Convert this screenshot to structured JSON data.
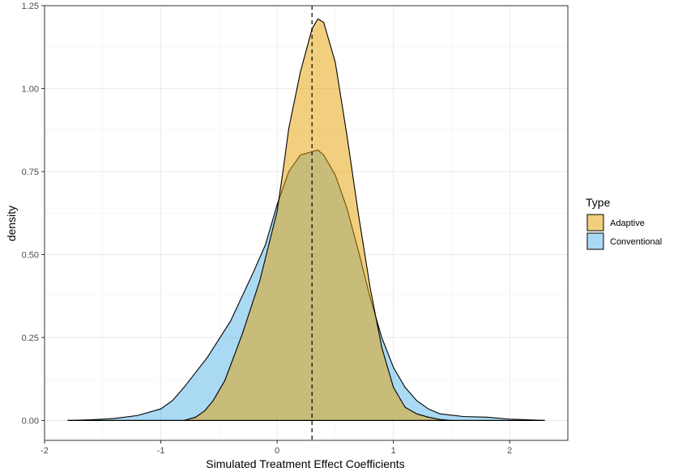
{
  "chart_data": {
    "type": "area",
    "xlabel": "Simulated Treatment Effect Coefficients",
    "ylabel": "density",
    "xlim": [
      -2,
      2.5
    ],
    "ylim": [
      -0.06,
      1.25
    ],
    "x_ticks": [
      -2,
      -1,
      0,
      1,
      2
    ],
    "x_tick_labels": [
      "-2",
      "-1",
      "0",
      "1",
      "2"
    ],
    "y_ticks": [
      0,
      0.25,
      0.5,
      0.75,
      1.0,
      1.25
    ],
    "y_tick_labels": [
      "0.00",
      "0.25",
      "0.50",
      "0.75",
      "1.00",
      "1.25"
    ],
    "grid": true,
    "legend_title": "Type",
    "legend_position": "right",
    "vline": {
      "x": 0.3,
      "style": "dashed"
    },
    "series": [
      {
        "name": "Adaptive",
        "fill": "#E69F00",
        "x": [
          -0.8,
          -0.7,
          -0.62,
          -0.55,
          -0.45,
          -0.3,
          -0.15,
          0.0,
          0.05,
          0.1,
          0.2,
          0.3,
          0.35,
          0.4,
          0.5,
          0.6,
          0.7,
          0.8,
          0.9,
          1.0,
          1.1,
          1.2,
          1.3,
          1.4,
          1.5
        ],
        "y": [
          0.0,
          0.01,
          0.03,
          0.06,
          0.12,
          0.26,
          0.42,
          0.63,
          0.75,
          0.88,
          1.05,
          1.18,
          1.21,
          1.2,
          1.08,
          0.86,
          0.62,
          0.4,
          0.22,
          0.1,
          0.04,
          0.02,
          0.01,
          0.003,
          0.0
        ]
      },
      {
        "name": "Conventional",
        "fill": "#56B4E9",
        "x": [
          -1.8,
          -1.6,
          -1.4,
          -1.2,
          -1.0,
          -0.9,
          -0.8,
          -0.6,
          -0.4,
          -0.2,
          -0.1,
          0.0,
          0.1,
          0.2,
          0.3,
          0.35,
          0.4,
          0.5,
          0.6,
          0.7,
          0.8,
          0.9,
          1.0,
          1.1,
          1.2,
          1.3,
          1.4,
          1.6,
          1.8,
          2.0,
          2.3
        ],
        "y": [
          0.0,
          0.002,
          0.006,
          0.015,
          0.035,
          0.06,
          0.1,
          0.19,
          0.3,
          0.45,
          0.53,
          0.65,
          0.75,
          0.8,
          0.81,
          0.815,
          0.8,
          0.74,
          0.64,
          0.51,
          0.37,
          0.25,
          0.16,
          0.1,
          0.06,
          0.035,
          0.02,
          0.012,
          0.01,
          0.004,
          0.0
        ]
      }
    ]
  }
}
